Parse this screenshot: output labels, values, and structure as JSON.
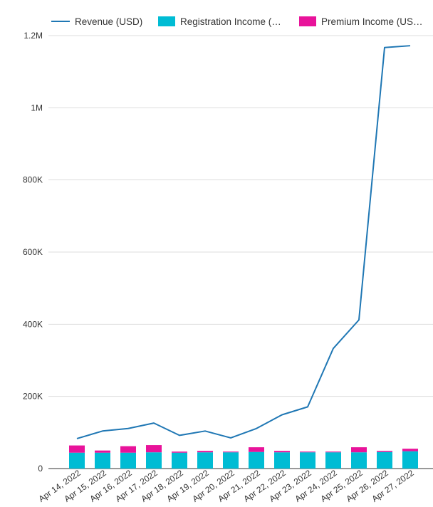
{
  "colors": {
    "revenue": "#1f77b4",
    "registration": "#00bcd4",
    "premium": "#e8139a",
    "grid": "#dddddd",
    "axis": "#333333"
  },
  "chart_data": {
    "type": "bar",
    "combo_line_series": "Revenue (USD)",
    "categories": [
      "Apr 14, 2022",
      "Apr 15, 2022",
      "Apr 16, 2022",
      "Apr 17, 2022",
      "Apr 18, 2022",
      "Apr 19, 2022",
      "Apr 20, 2022",
      "Apr 21, 2022",
      "Apr 22, 2022",
      "Apr 23, 2022",
      "Apr 24, 2022",
      "Apr 25, 2022",
      "Apr 26, 2022",
      "Apr 27, 2022"
    ],
    "series": [
      {
        "name": "Revenue (USD)",
        "kind": "line",
        "color": "#1f77b4",
        "values": [
          83000,
          104000,
          111000,
          126000,
          92000,
          104000,
          85000,
          111000,
          149000,
          171000,
          333000,
          412000,
          1167000,
          1172000
        ]
      },
      {
        "name": "Registration Income (…",
        "kind": "bar-stacked",
        "color": "#00bcd4",
        "values": [
          44000,
          44000,
          44000,
          45000,
          44000,
          45000,
          45000,
          46000,
          45000,
          45000,
          45000,
          45000,
          46000,
          48000
        ]
      },
      {
        "name": "Premium Income (US…",
        "kind": "bar-stacked",
        "color": "#e8139a",
        "values": [
          20000,
          6000,
          18000,
          20000,
          3000,
          4000,
          2000,
          13000,
          4000,
          2000,
          2000,
          14000,
          3000,
          7000
        ]
      }
    ],
    "y_ticks": [
      "0",
      "200K",
      "400K",
      "600K",
      "800K",
      "1M",
      "1.2M"
    ],
    "ylim": [
      0,
      1200000
    ],
    "grid": true,
    "legend_position": "top-left"
  }
}
